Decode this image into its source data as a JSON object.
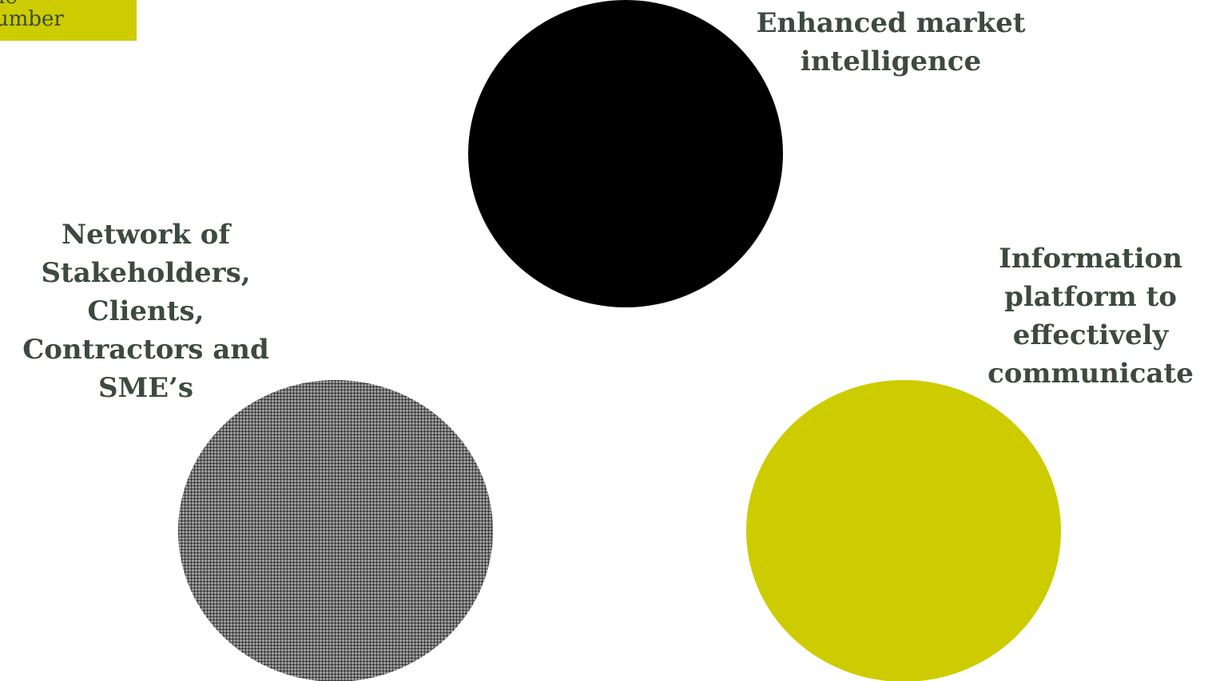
{
  "badge": {
    "line1": "le",
    "line2": "umber",
    "color": "#cccc00"
  },
  "circles": [
    {
      "name": "top",
      "color": "#000000",
      "pattern": "solid"
    },
    {
      "name": "bottom-left",
      "color": "#9a9a9a",
      "pattern": "fine-grid"
    },
    {
      "name": "bottom-right",
      "color": "#cccc00",
      "pattern": "solid"
    }
  ],
  "labels": {
    "top": [
      "Enhanced market",
      "intelligence"
    ],
    "left": [
      "Network of",
      "Stakeholders,",
      "Clients,",
      "Contractors and",
      "SME’s"
    ],
    "right": [
      "Information",
      "platform to",
      "effectively",
      "communicate"
    ]
  },
  "text_color": "#3d4a3f"
}
